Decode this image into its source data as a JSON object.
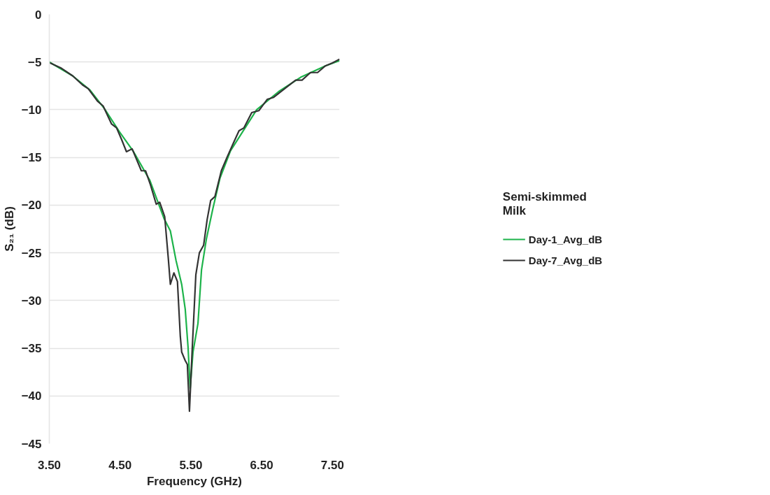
{
  "chart_data": {
    "type": "line",
    "xlabel": "Frequency (GHz)",
    "ylabel": "S₂₁ (dB)",
    "legend_title": "Semi-skimmed Milk",
    "xlim": [
      3.5,
      7.6
    ],
    "ylim": [
      -45,
      0
    ],
    "xticks": [
      {
        "value": 3.5,
        "label": "3.50"
      },
      {
        "value": 4.5,
        "label": "4.50"
      },
      {
        "value": 5.5,
        "label": "5.50"
      },
      {
        "value": 6.5,
        "label": "6.50"
      },
      {
        "value": 7.5,
        "label": "7.50"
      }
    ],
    "yticks": [
      0,
      -5,
      -10,
      -15,
      -20,
      -25,
      -30,
      -35,
      -40,
      -45
    ],
    "grid": "y",
    "legend": "right",
    "line_style": "solid",
    "marker": "none",
    "series": [
      {
        "name": "Day-1_Avg_dB",
        "color": "#1db34a",
        "x": [
          3.5,
          3.83,
          4.07,
          4.28,
          4.49,
          4.69,
          4.92,
          5.12,
          5.21,
          5.29,
          5.37,
          5.42,
          5.46,
          5.49,
          5.53,
          5.6,
          5.65,
          5.72,
          5.81,
          5.91,
          6.06,
          6.43,
          6.74,
          7.05,
          7.4,
          7.6
        ],
        "values": [
          -5.0,
          -6.45,
          -7.9,
          -9.9,
          -12.3,
          -14.4,
          -17.4,
          -21.4,
          -22.7,
          -25.8,
          -28.3,
          -30.9,
          -34.9,
          -39.2,
          -35.4,
          -32.4,
          -26.8,
          -23.5,
          -20.4,
          -17.2,
          -14.3,
          -10.0,
          -8.1,
          -6.6,
          -5.4,
          -4.85
        ]
      },
      {
        "name": "Day-7_Avg_dB",
        "color": "#333333",
        "x": [
          3.51,
          3.66,
          3.83,
          3.97,
          4.05,
          4.18,
          4.26,
          4.38,
          4.45,
          4.52,
          4.59,
          4.67,
          4.8,
          4.86,
          4.93,
          5.01,
          5.06,
          5.13,
          5.18,
          5.21,
          5.26,
          5.31,
          5.35,
          5.37,
          5.42,
          5.45,
          5.48,
          5.52,
          5.57,
          5.62,
          5.68,
          5.73,
          5.78,
          5.84,
          5.93,
          6.01,
          6.1,
          6.18,
          6.25,
          6.36,
          6.46,
          6.58,
          6.67,
          6.84,
          6.98,
          7.07,
          7.19,
          7.29,
          7.4,
          7.5,
          7.6
        ],
        "values": [
          -5.1,
          -5.6,
          -6.45,
          -7.4,
          -7.8,
          -9.1,
          -9.6,
          -11.5,
          -11.9,
          -13.1,
          -14.4,
          -14.1,
          -16.4,
          -16.4,
          -17.9,
          -19.9,
          -19.7,
          -21.2,
          -25.5,
          -28.3,
          -27.1,
          -28.0,
          -33.7,
          -35.4,
          -36.3,
          -36.7,
          -41.6,
          -34.9,
          -27.3,
          -25.0,
          -24.2,
          -21.5,
          -19.5,
          -19.1,
          -16.4,
          -15.0,
          -13.5,
          -12.2,
          -11.9,
          -10.3,
          -10.1,
          -8.9,
          -8.7,
          -7.7,
          -6.9,
          -6.9,
          -6.1,
          -6.1,
          -5.4,
          -5.1,
          -4.7
        ]
      }
    ]
  }
}
